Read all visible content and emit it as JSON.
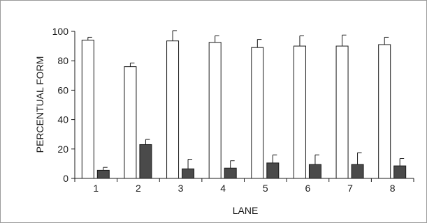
{
  "chart_data": {
    "type": "bar",
    "title": "",
    "xlabel": "LANE",
    "ylabel": "PERCENTUAL FORM",
    "ylim": [
      0,
      100
    ],
    "yticks": [
      0,
      20,
      40,
      60,
      80,
      100
    ],
    "categories": [
      "1",
      "2",
      "3",
      "4",
      "5",
      "6",
      "7",
      "8"
    ],
    "series": [
      {
        "fill": "#ffffff",
        "values": [
          94,
          76,
          93.5,
          92.5,
          89,
          90,
          90,
          91
        ],
        "error": [
          2,
          2.5,
          7,
          4.5,
          5.5,
          7,
          7.5,
          5
        ]
      },
      {
        "fill": "#4a4a4a",
        "values": [
          5.5,
          23,
          6.5,
          7,
          10.5,
          9.5,
          9.5,
          8.5
        ],
        "error": [
          2,
          3.5,
          6.5,
          5,
          5.5,
          6.5,
          8,
          5
        ]
      }
    ],
    "grid": false,
    "legend": "none"
  }
}
